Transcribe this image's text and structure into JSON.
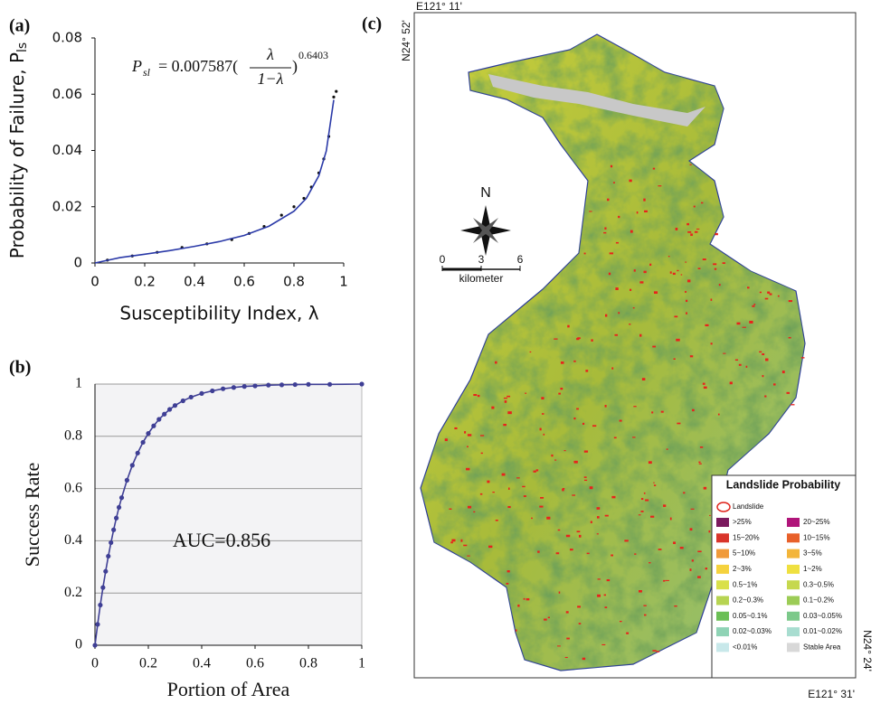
{
  "chart_data": [
    {
      "type": "scatter",
      "panel": "(a)",
      "xlabel": "Susceptibility Index, λ",
      "ylabel": "Probability of Failure, P",
      "ylabel_sub": "ls",
      "formula": {
        "lhs": "P",
        "lhs_sub": "sl",
        "coef": "= 0.007587(",
        "num": "λ",
        "den": "1−λ",
        "close": ")",
        "exp": "0.6403"
      },
      "xlim": [
        0,
        1
      ],
      "ylim": [
        0,
        0.08
      ],
      "xticks": [
        0,
        0.2,
        0.4,
        0.6,
        0.8,
        1
      ],
      "yticks": [
        0,
        0.02,
        0.04,
        0.06,
        0.08
      ],
      "series": [
        {
          "kind": "points",
          "color": "#111111",
          "x": [
            0.05,
            0.15,
            0.25,
            0.35,
            0.45,
            0.55,
            0.62,
            0.68,
            0.75,
            0.8,
            0.84,
            0.87,
            0.9,
            0.92,
            0.94,
            0.96,
            0.97
          ],
          "values": [
            0.001,
            0.0025,
            0.0038,
            0.0055,
            0.0068,
            0.0083,
            0.0105,
            0.013,
            0.017,
            0.02,
            0.023,
            0.027,
            0.032,
            0.037,
            0.045,
            0.059,
            0.061
          ]
        },
        {
          "kind": "curve",
          "color": "#2b3aa8",
          "x": [
            0,
            0.1,
            0.2,
            0.3,
            0.4,
            0.5,
            0.6,
            0.7,
            0.8,
            0.85,
            0.9,
            0.93,
            0.96
          ],
          "values": [
            0,
            0.0019,
            0.0031,
            0.0044,
            0.0059,
            0.0076,
            0.0098,
            0.0131,
            0.0184,
            0.023,
            0.031,
            0.0398,
            0.058
          ]
        }
      ]
    },
    {
      "type": "line",
      "panel": "(b)",
      "xlabel": "Portion of Area",
      "ylabel": "Success Rate",
      "annotation": "AUC=0.856",
      "xlim": [
        0,
        1
      ],
      "ylim": [
        0,
        1
      ],
      "xticks": [
        0,
        0.2,
        0.4,
        0.6,
        0.8,
        1
      ],
      "yticks": [
        0,
        0.2,
        0.4,
        0.6,
        0.8,
        1
      ],
      "grid": true,
      "series": [
        {
          "color": "#3f3f95",
          "x": [
            0,
            0.01,
            0.02,
            0.03,
            0.04,
            0.05,
            0.06,
            0.07,
            0.08,
            0.09,
            0.1,
            0.12,
            0.14,
            0.16,
            0.18,
            0.2,
            0.22,
            0.24,
            0.26,
            0.28,
            0.3,
            0.33,
            0.36,
            0.4,
            0.44,
            0.48,
            0.52,
            0.56,
            0.6,
            0.65,
            0.7,
            0.75,
            0.8,
            0.88,
            1
          ],
          "values": [
            0,
            0.08,
            0.154,
            0.221,
            0.283,
            0.341,
            0.393,
            0.442,
            0.487,
            0.528,
            0.565,
            0.632,
            0.689,
            0.736,
            0.777,
            0.811,
            0.84,
            0.865,
            0.885,
            0.903,
            0.918,
            0.936,
            0.95,
            0.964,
            0.974,
            0.982,
            0.987,
            0.991,
            0.993,
            0.996,
            0.997,
            0.998,
            0.999,
            0.999,
            1
          ]
        }
      ]
    }
  ],
  "map": {
    "panel": "(c)",
    "coords": {
      "top_left_e": "E121° 11'",
      "top_left_n": "N24° 52'",
      "bottom_right_n": "N24° 24'",
      "bottom_right_e": "E121° 31'"
    },
    "north": "N",
    "scale": {
      "ticks": [
        "0",
        "3",
        "6"
      ],
      "unit": "kilometer"
    },
    "legend": {
      "title": "Landslide Probability",
      "landslide": "Landslide",
      "items": [
        {
          "label": ">25%",
          "color": "#7b1a5e"
        },
        {
          "label": "20~25%",
          "color": "#b0157a"
        },
        {
          "label": "15~20%",
          "color": "#d9342b"
        },
        {
          "label": "10~15%",
          "color": "#e8602a"
        },
        {
          "label": "5~10%",
          "color": "#f09a3a"
        },
        {
          "label": "3~5%",
          "color": "#f3b53a"
        },
        {
          "label": "2~3%",
          "color": "#f5d23e"
        },
        {
          "label": "1~2%",
          "color": "#efe040"
        },
        {
          "label": "0.5~1%",
          "color": "#d9e04a"
        },
        {
          "label": "0.3~0.5%",
          "color": "#c6d84e"
        },
        {
          "label": "0.2~0.3%",
          "color": "#b7d452"
        },
        {
          "label": "0.1~0.2%",
          "color": "#9ccc56"
        },
        {
          "label": "0.05~0.1%",
          "color": "#6bbf55"
        },
        {
          "label": "0.03~0.05%",
          "color": "#7cc98a"
        },
        {
          "label": "0.02~0.03%",
          "color": "#8fd3b5"
        },
        {
          "label": "0.01~0.02%",
          "color": "#a8ddd0"
        },
        {
          "label": "<0.01%",
          "color": "#c8e8ea"
        },
        {
          "label": "Stable Area",
          "color": "#d8d8d8"
        }
      ]
    }
  }
}
